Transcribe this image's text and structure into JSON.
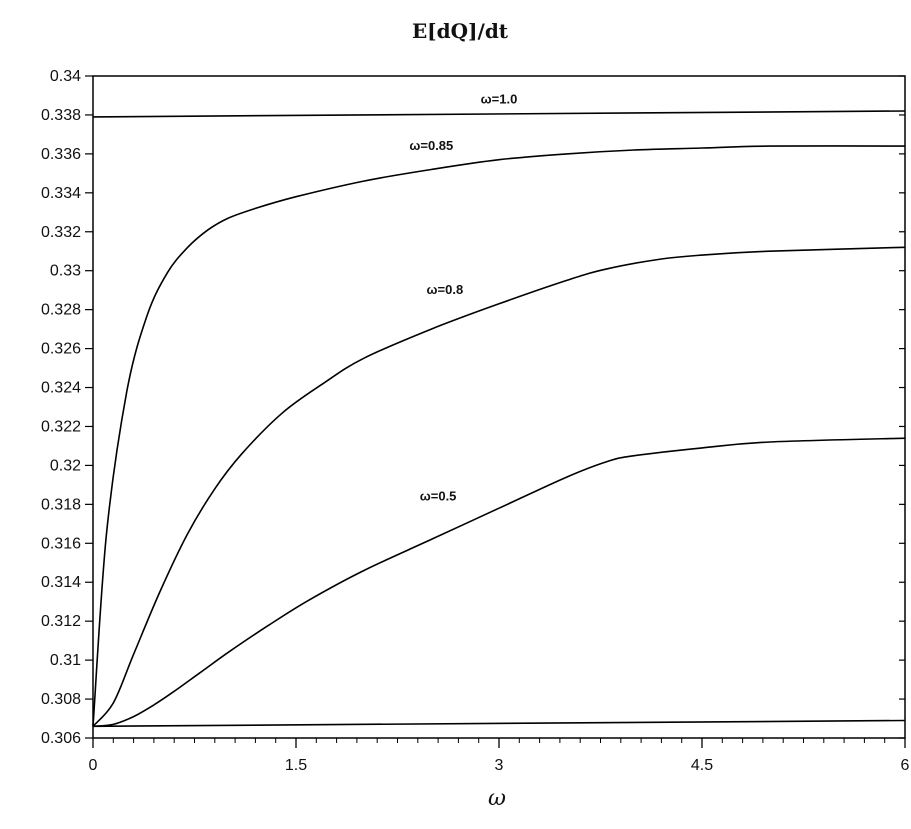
{
  "chart_data": {
    "type": "line",
    "title": "E[dQ]/dt",
    "xlabel": "ω",
    "ylabel": "",
    "xlim": [
      0,
      6
    ],
    "ylim": [
      0.306,
      0.34
    ],
    "x_ticks": [
      "0",
      "1.5",
      "3",
      "4.5",
      "6"
    ],
    "x_tick_values": [
      0,
      1.5,
      3,
      4.5,
      6
    ],
    "y_ticks": [
      "0.306",
      "0.308",
      "0.31",
      "0.312",
      "0.314",
      "0.316",
      "0.318",
      "0.32",
      "0.322",
      "0.324",
      "0.326",
      "0.328",
      "0.33",
      "0.332",
      "0.334",
      "0.336",
      "0.338",
      "0.34"
    ],
    "y_tick_values": [
      0.306,
      0.308,
      0.31,
      0.312,
      0.314,
      0.316,
      0.318,
      0.32,
      0.322,
      0.324,
      0.326,
      0.328,
      0.33,
      0.332,
      0.334,
      0.336,
      0.338,
      0.34
    ],
    "grid": false,
    "legend": "none",
    "series": [
      {
        "label": "ω=1.0",
        "label_at": [
          3.0,
          0.3386
        ],
        "x": [
          0,
          6
        ],
        "y": [
          0.3379,
          0.3382
        ]
      },
      {
        "label": "ω=0.85",
        "label_at": [
          2.5,
          0.3362
        ],
        "x": [
          0,
          0.1,
          0.25,
          0.4,
          0.55,
          0.7,
          0.85,
          1.0,
          1.2,
          1.5,
          2.0,
          2.5,
          3.0,
          3.5,
          4.0,
          4.5,
          5.0,
          6.0
        ],
        "y": [
          0.3066,
          0.3165,
          0.3238,
          0.3277,
          0.3299,
          0.3312,
          0.3321,
          0.3327,
          0.3332,
          0.3338,
          0.3346,
          0.3352,
          0.3357,
          0.336,
          0.3362,
          0.3363,
          0.3364,
          0.3364
        ]
      },
      {
        "label": "ω=0.8",
        "label_at": [
          2.6,
          0.3288
        ],
        "x": [
          0,
          0.15,
          0.3,
          0.5,
          0.7,
          0.9,
          1.1,
          1.4,
          1.7,
          2.0,
          2.5,
          3.0,
          3.5,
          3.8,
          4.2,
          4.5,
          5.0,
          6.0
        ],
        "y": [
          0.3066,
          0.3078,
          0.3103,
          0.3136,
          0.3165,
          0.3188,
          0.3206,
          0.3227,
          0.3242,
          0.3255,
          0.327,
          0.3283,
          0.3295,
          0.3301,
          0.3306,
          0.3308,
          0.331,
          0.3312
        ]
      },
      {
        "label": "ω=0.5",
        "label_at": [
          2.55,
          0.3182
        ],
        "x": [
          0,
          0.15,
          0.3,
          0.45,
          0.6,
          0.8,
          1.0,
          1.3,
          1.6,
          2.0,
          2.5,
          3.0,
          3.5,
          3.8,
          4.0,
          4.5,
          5.0,
          6.0
        ],
        "y": [
          0.3066,
          0.3067,
          0.3071,
          0.3077,
          0.3084,
          0.3094,
          0.3104,
          0.3118,
          0.3131,
          0.3146,
          0.3162,
          0.3178,
          0.3194,
          0.3202,
          0.3205,
          0.3209,
          0.3212,
          0.3214
        ]
      },
      {
        "label": "",
        "x": [
          0,
          6
        ],
        "y": [
          0.3066,
          0.3069
        ]
      }
    ]
  }
}
